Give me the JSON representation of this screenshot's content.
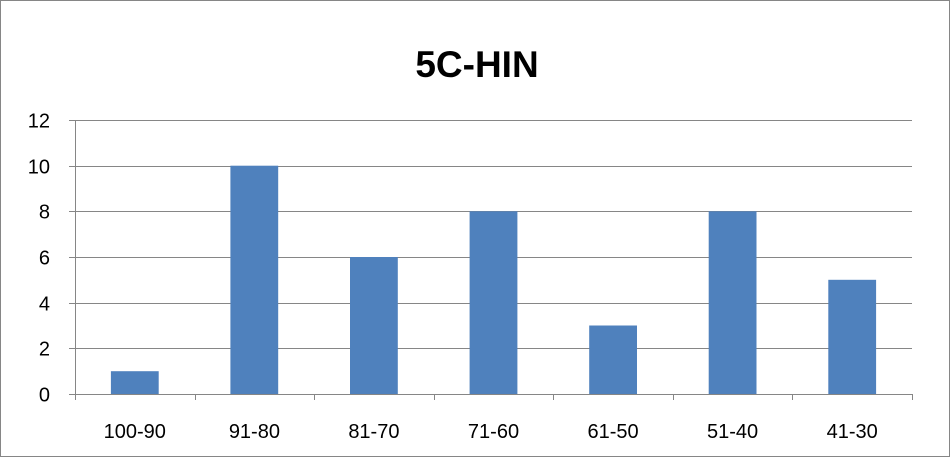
{
  "chart_data": {
    "type": "bar",
    "title": "5C-HIN",
    "xlabel": "",
    "ylabel": "",
    "categories": [
      "100-90",
      "91-80",
      "81-70",
      "71-60",
      "61-50",
      "51-40",
      "41-30"
    ],
    "values": [
      1,
      10,
      6,
      8,
      3,
      8,
      5
    ],
    "ylim": [
      0,
      12
    ],
    "yticks": [
      0,
      2,
      4,
      6,
      8,
      10,
      12
    ],
    "grid": true,
    "legend": "none",
    "bar_color": "#4F81BD",
    "grid_color": "#868686"
  }
}
